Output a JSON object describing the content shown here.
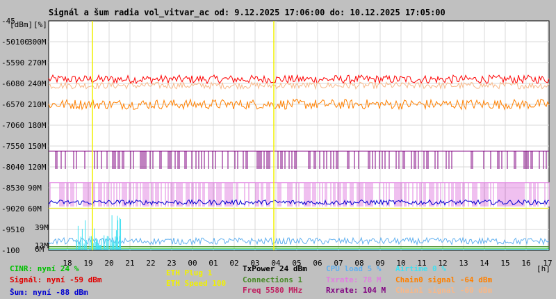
{
  "chart_data": {
    "type": "line",
    "title": "Signál a šum radia vol_vitvar_ac od: 9.12.2025 17:06:00 do: 10.12.2025 17:05:00",
    "unit_labels": [
      "[dBm]",
      "[%]"
    ],
    "xlabel": "[h]",
    "x_ticks": [
      "18",
      "19",
      "20",
      "21",
      "22",
      "23",
      "00",
      "01",
      "02",
      "03",
      "04",
      "05",
      "06",
      "07",
      "08",
      "09",
      "10",
      "11",
      "12",
      "13",
      "14",
      "15",
      "16",
      "17"
    ],
    "y_ticks_dbm": [
      "-45",
      "-50",
      "-55",
      "-60",
      "-65",
      "-70",
      "-75",
      "-80",
      "-85",
      "-90",
      "-95",
      "-100"
    ],
    "y_ticks_pct": [
      "",
      "100",
      "90",
      "80",
      "70",
      "60",
      "50",
      "40",
      "30",
      "20",
      "10",
      ""
    ],
    "y_ticks_rate": [
      "",
      "300M",
      "270M",
      "240M",
      "210M",
      "180M",
      "150M",
      "120M",
      "90M",
      "60M",
      "",
      ""
    ],
    "y_ticks_extra": [
      {
        "label": "39M",
        "color": "#e060e0"
      },
      {
        "label": "13M",
        "color": "#f0a0f0"
      },
      {
        "label": "6M",
        "color": "#e060e0"
      }
    ],
    "ylim": [
      -100,
      -45
    ],
    "grid": true,
    "markers_x": [
      19.2,
      3.9
    ],
    "series": [
      {
        "name": "Signál",
        "color": "#ff0000",
        "kind": "noisy",
        "base": -59,
        "noise": 1.0
      },
      {
        "name": "Chain1 signal",
        "color": "#f8b888",
        "kind": "noisy",
        "base": -60.5,
        "noise": 0.8
      },
      {
        "name": "Chain0 signal",
        "color": "#ff8000",
        "kind": "noisy",
        "base": -65,
        "noise": 1.2
      },
      {
        "name": "Rxrate",
        "color": "#800080",
        "kind": "steps",
        "base": -76.2,
        "low": -80.5,
        "density": 0.35
      },
      {
        "name": "Txrate",
        "color": "#e080e0",
        "kind": "steps",
        "base": -83.8,
        "low": -89.5,
        "density": 0.6
      },
      {
        "name": "Šum",
        "color": "#0000d0",
        "kind": "noisy",
        "base": -88.5,
        "noise": 0.6
      },
      {
        "name": "ETH Speed",
        "color": "#f0f000",
        "kind": "flat",
        "base": -89.9
      },
      {
        "name": "CPU load",
        "color": "#60b0f0",
        "kind": "noisy",
        "base": -97.8,
        "noise": 0.8
      },
      {
        "name": "Connections",
        "color": "#4a8a2a",
        "kind": "flat",
        "base": -99.1
      },
      {
        "name": "Airtime",
        "color": "#40e0f0",
        "kind": "flat",
        "base": -99.8
      },
      {
        "name": "CINR",
        "color": "#00c000",
        "kind": "flat",
        "base": -99.5
      }
    ]
  },
  "legend": {
    "cinr": "CINR: nyní 24 %",
    "signal": "Signál: nyní -59 dBm",
    "noise": "Šum: nyní -88 dBm",
    "eth_plug": "ETH Plug 1",
    "eth_speed": "ETH Speed 100",
    "txpower": "TxPower 24 dBm",
    "connections": "Connections 1",
    "freq": "Freq 5580 MHz",
    "cpu": "CPU load 5 %",
    "txrate": "Txrate: 78 M",
    "rxrate": "Rxrate: 104 M",
    "airtime": "Airtime 0 %",
    "chain0": "Chain0 signal -64 dBm",
    "chain1": "Chain1 signal -60 dBm"
  },
  "colors": {
    "cinr": "#00c000",
    "signal": "#e00000",
    "noise": "#0000d0",
    "eth": "#f0f000",
    "txpower": "#000000",
    "connections": "#4a8a2a",
    "freq": "#c02060",
    "cpu": "#60b0f0",
    "txrate": "#e080e0",
    "rxrate": "#800080",
    "airtime": "#40e0f0",
    "chain0": "#ff8000",
    "chain1": "#f8b888"
  }
}
